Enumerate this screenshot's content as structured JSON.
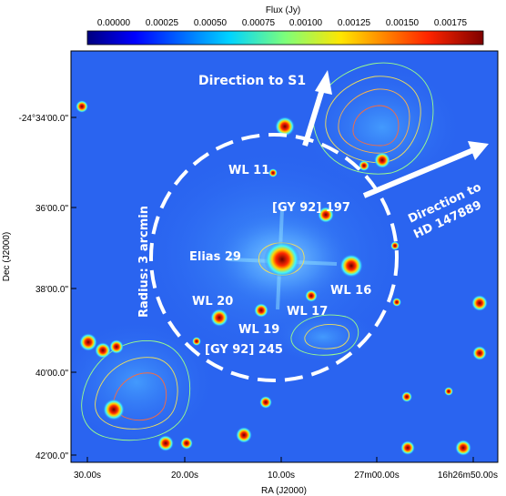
{
  "colorbar": {
    "title": "Flux (Jy)",
    "ticks": [
      "0.00000",
      "0.00025",
      "0.00050",
      "0.00075",
      "0.00100",
      "0.00125",
      "0.00150",
      "0.00175"
    ]
  },
  "axes": {
    "xlabel": "RA (J2000)",
    "ylabel": "Dec (J2000)",
    "xticks": [
      "30.00s",
      "20.00s",
      "10.00s",
      "27m00.00s",
      "16h26m50.00s"
    ],
    "yticks": [
      "-24°34'00.0\"",
      "36'00.0\"",
      "38'00.0\"",
      "40'00.0\"",
      "42'00.0\""
    ]
  },
  "annotations": {
    "direction_s1": "Direction to S1",
    "direction_hd_line1": "Direction to",
    "direction_hd_line2": "HD 147889",
    "radius": "Radius: 3 arcmin"
  },
  "sources": {
    "wl11": "WL 11",
    "gy197": "[GY 92] 197",
    "elias29": "Elias 29",
    "wl16": "WL 16",
    "wl20": "WL 20",
    "wl17": "WL 17",
    "wl19": "WL 19",
    "gy245": "[GY 92] 245"
  },
  "colors": {
    "background_map": "#2a64f0",
    "contour": "#f2e05a",
    "circle": "#ffffff"
  }
}
